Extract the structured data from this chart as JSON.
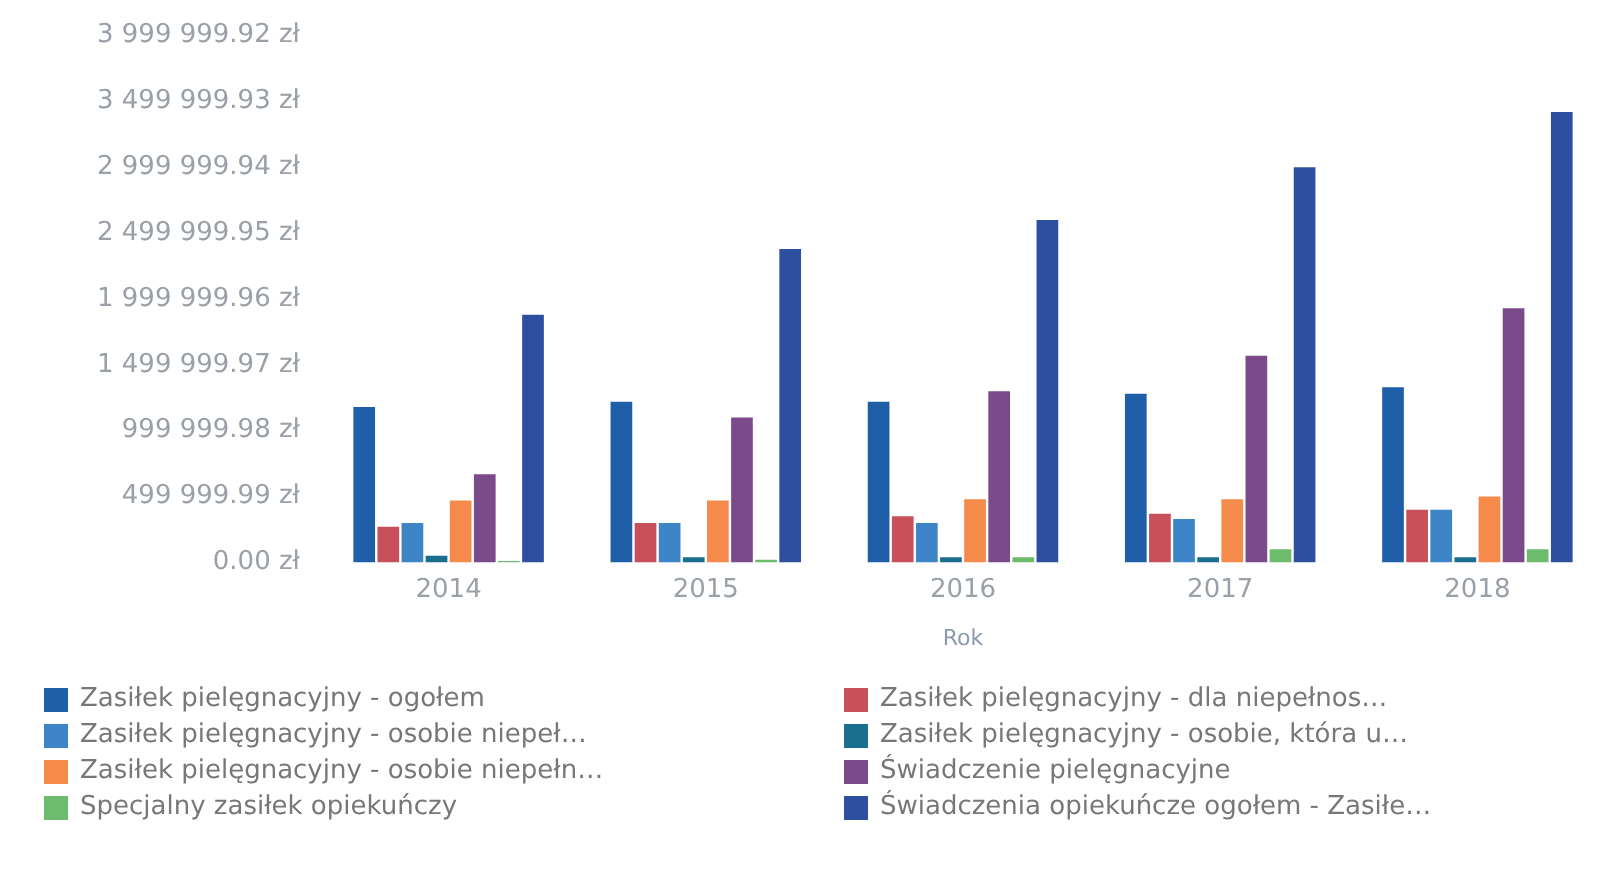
{
  "chart_data": {
    "type": "bar",
    "xlabel": "Rok",
    "categories": [
      "2014",
      "2015",
      "2016",
      "2017",
      "2018"
    ],
    "series": [
      {
        "name": "Zasiłek pielęgnacyjny - ogołem",
        "color": "#1f5fa8",
        "values": [
          1180000,
          1220000,
          1220000,
          1280000,
          1330000
        ]
      },
      {
        "name": "Zasiłek pielęgnacyjny - dla niepełnos…",
        "color": "#c8505a",
        "values": [
          270000,
          300000,
          350000,
          370000,
          400000
        ]
      },
      {
        "name": "Zasiłek pielęgnacyjny - osobie niepeł…",
        "color": "#3d85c6",
        "values": [
          300000,
          300000,
          300000,
          330000,
          400000
        ]
      },
      {
        "name": "Zasiłek pielęgnacyjny - osobie, która u…",
        "color": "#1a6e8e",
        "values": [
          50000,
          40000,
          40000,
          40000,
          40000
        ]
      },
      {
        "name": "Zasiłek pielęgnacyjny - osobie niepełn…",
        "color": "#f58a4b",
        "values": [
          470000,
          470000,
          480000,
          480000,
          500000
        ]
      },
      {
        "name": "Świadczenie pielęgnacyjne",
        "color": "#7b4a8a",
        "values": [
          670000,
          1100000,
          1300000,
          1570000,
          1930000
        ]
      },
      {
        "name": "Specjalny zasiłek opiekuńczy",
        "color": "#6dbb6d",
        "values": [
          10000,
          20000,
          40000,
          100000,
          100000
        ]
      },
      {
        "name": "Świadczenia opiekuńcze ogołem - Zasiłe…",
        "color": "#2e4fa0",
        "values": [
          1880000,
          2380000,
          2600000,
          3000000,
          3420000
        ]
      }
    ],
    "ylim": [
      0,
      3999999.92
    ],
    "yticks": [
      {
        "value": 0,
        "label": "0.00 zł"
      },
      {
        "value": 499999.99,
        "label": "499 999.99 zł"
      },
      {
        "value": 999999.98,
        "label": "999 999.98 zł"
      },
      {
        "value": 1499999.97,
        "label": "1 499 999.97 zł"
      },
      {
        "value": 1999999.96,
        "label": "1 999 999.96 zł"
      },
      {
        "value": 2499999.95,
        "label": "2 499 999.95 zł"
      },
      {
        "value": 2999999.94,
        "label": "2 999 999.94 zł"
      },
      {
        "value": 3499999.93,
        "label": "3 499 999.93 zł"
      },
      {
        "value": 3999999.92,
        "label": "3 999 999.92 zł"
      }
    ],
    "grid": false,
    "legend": "bottom"
  }
}
